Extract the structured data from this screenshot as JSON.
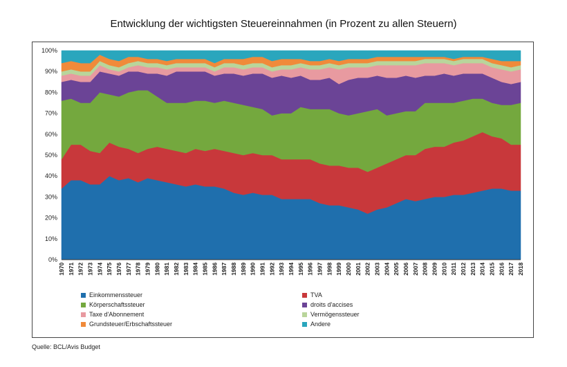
{
  "chart_data": {
    "type": "area",
    "stacked": true,
    "title": "Entwicklung der wichtigsten Steuereinnahmen (in Prozent zu allen Steuern)",
    "xlabel": "",
    "ylabel": "",
    "ylim": [
      0,
      100
    ],
    "y_ticks": [
      "0%",
      "10%",
      "20%",
      "30%",
      "40%",
      "50%",
      "60%",
      "70%",
      "80%",
      "90%",
      "100%"
    ],
    "x": [
      "1970",
      "1971",
      "1972",
      "1973",
      "1974",
      "1975",
      "1976",
      "1977",
      "1978",
      "1979",
      "1980",
      "1981",
      "1982",
      "1983",
      "1984",
      "1985",
      "1986",
      "1987",
      "1988",
      "1989",
      "1990",
      "1991",
      "1992",
      "1993",
      "1994",
      "1995",
      "1996",
      "1997",
      "1998",
      "1999",
      "2000",
      "2001",
      "2002",
      "2003",
      "2004",
      "2005",
      "2006",
      "2007",
      "2008",
      "2009",
      "2010",
      "2011",
      "2012",
      "2013",
      "2014",
      "2015",
      "2016",
      "2017",
      "2018"
    ],
    "series": [
      {
        "name": "Einkommenssteuer",
        "color": "#1f6fad",
        "values": [
          34,
          38,
          38,
          36,
          36,
          40,
          38,
          39,
          37,
          39,
          38,
          37,
          36,
          35,
          36,
          35,
          35,
          34,
          32,
          31,
          32,
          31,
          31,
          29,
          29,
          29,
          29,
          27,
          26,
          26,
          25,
          24,
          22,
          24,
          25,
          27,
          29,
          28,
          29,
          30,
          30,
          31,
          31,
          32,
          33,
          34,
          34,
          33,
          33
        ]
      },
      {
        "name": "TVA",
        "color": "#c8383b",
        "values": [
          14,
          17,
          17,
          16,
          15,
          16,
          16,
          14,
          14,
          14,
          16,
          16,
          16,
          16,
          17,
          17,
          18,
          18,
          19,
          19,
          19,
          19,
          19,
          19,
          19,
          19,
          19,
          19,
          19,
          19,
          19,
          20,
          20,
          20,
          21,
          21,
          21,
          22,
          24,
          24,
          24,
          25,
          26,
          27,
          28,
          25,
          24,
          22,
          22
        ]
      },
      {
        "name": "Körperschaftssteuer",
        "color": "#74a83e",
        "values": [
          28,
          22,
          20,
          23,
          29,
          23,
          24,
          27,
          30,
          28,
          24,
          22,
          23,
          24,
          23,
          24,
          22,
          24,
          24,
          24,
          22,
          22,
          19,
          22,
          22,
          25,
          24,
          26,
          27,
          25,
          25,
          26,
          29,
          28,
          23,
          22,
          21,
          21,
          22,
          21,
          21,
          19,
          19,
          18,
          16,
          16,
          16,
          19,
          20
        ]
      },
      {
        "name": "droits d'accises",
        "color": "#6b4496",
        "values": [
          9,
          9,
          10,
          10,
          10,
          10,
          10,
          10,
          9,
          8,
          11,
          13,
          15,
          15,
          14,
          14,
          13,
          13,
          14,
          14,
          16,
          17,
          18,
          18,
          17,
          15,
          14,
          14,
          15,
          14,
          17,
          17,
          16,
          16,
          18,
          17,
          17,
          16,
          13,
          13,
          14,
          13,
          13,
          12,
          12,
          12,
          11,
          10,
          10
        ]
      },
      {
        "name": "Taxe d'Abonnement",
        "color": "#e89aa0",
        "values": [
          3,
          3,
          3,
          3,
          3,
          2,
          2,
          2,
          3,
          3,
          3,
          3,
          2,
          2,
          2,
          2,
          2,
          3,
          3,
          3,
          3,
          3,
          3,
          3,
          4,
          4,
          5,
          5,
          5,
          7,
          6,
          5,
          5,
          5,
          6,
          6,
          5,
          6,
          6,
          6,
          5,
          5,
          5,
          5,
          5,
          5,
          6,
          6,
          6
        ]
      },
      {
        "name": "Vermögenssteuer",
        "color": "#b9d59b",
        "values": [
          2,
          2,
          2,
          2,
          2,
          2,
          2,
          2,
          2,
          2,
          2,
          2,
          2,
          2,
          2,
          2,
          2,
          2,
          2,
          2,
          2,
          2,
          2,
          2,
          2,
          2,
          2,
          2,
          2,
          2,
          2,
          2,
          2,
          2,
          2,
          2,
          2,
          2,
          2,
          2,
          2,
          2,
          2,
          2,
          2,
          2,
          2,
          2,
          2
        ]
      },
      {
        "name": "Grundsteuer/Erbschaftssteuer",
        "color": "#f08a3a",
        "values": [
          4,
          4,
          4,
          4,
          3,
          3,
          3,
          3,
          2,
          2,
          2,
          2,
          2,
          2,
          2,
          2,
          2,
          2,
          2,
          3,
          3,
          3,
          3,
          3,
          3,
          2,
          2,
          2,
          2,
          2,
          2,
          2,
          2,
          2,
          2,
          2,
          2,
          2,
          1,
          1,
          1,
          1,
          1,
          1,
          1,
          2,
          2,
          3,
          2
        ]
      },
      {
        "name": "Andere",
        "color": "#2aa6bd",
        "values": [
          6,
          5,
          6,
          6,
          2,
          4,
          5,
          3,
          3,
          4,
          4,
          5,
          4,
          4,
          4,
          4,
          6,
          4,
          4,
          4,
          3,
          3,
          5,
          4,
          4,
          4,
          5,
          5,
          4,
          5,
          4,
          4,
          4,
          3,
          3,
          3,
          3,
          3,
          3,
          3,
          3,
          4,
          3,
          3,
          3,
          4,
          5,
          5,
          5
        ]
      }
    ]
  },
  "legend": [
    "Einkommenssteuer",
    "TVA",
    "Körperschaftssteuer",
    "droits d'accises",
    "Taxe d'Abonnement",
    "Vermögenssteuer",
    "Grundsteuer/Erbschaftssteuer",
    "Andere"
  ],
  "source": "Quelle: BCL/Avis Budget"
}
